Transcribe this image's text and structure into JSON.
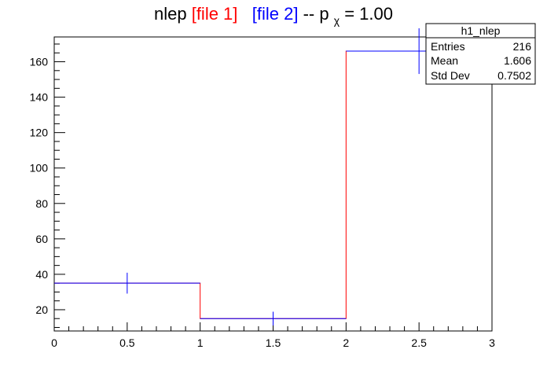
{
  "chart_data": {
    "type": "histogram-overlay",
    "title": {
      "prefix": "nlep ",
      "file1": "[file 1]",
      "file2": "[file 2]",
      "suffix_before_p": " -- p",
      "chi": "χ",
      "equals": " = 1.00"
    },
    "xlim": [
      0,
      3
    ],
    "ylim": [
      8,
      174
    ],
    "x_ticks": [
      {
        "value": 0,
        "label": "0"
      },
      {
        "value": 0.5,
        "label": "0.5"
      },
      {
        "value": 1,
        "label": "1"
      },
      {
        "value": 1.5,
        "label": "1.5"
      },
      {
        "value": 2,
        "label": "2"
      },
      {
        "value": 2.5,
        "label": "2.5"
      },
      {
        "value": 3,
        "label": "3"
      }
    ],
    "y_ticks": [
      {
        "value": 20,
        "label": "20"
      },
      {
        "value": 40,
        "label": "40"
      },
      {
        "value": 60,
        "label": "60"
      },
      {
        "value": 80,
        "label": "80"
      },
      {
        "value": 100,
        "label": "100"
      },
      {
        "value": 120,
        "label": "120"
      },
      {
        "value": 140,
        "label": "140"
      },
      {
        "value": 160,
        "label": "160"
      }
    ],
    "series": [
      {
        "name": "file 1",
        "color": "#ff0000",
        "style": "step",
        "bins": [
          {
            "x_low": 0,
            "x_high": 1,
            "value": 35
          },
          {
            "x_low": 1,
            "x_high": 2,
            "value": 15
          },
          {
            "x_low": 2,
            "x_high": 3,
            "value": 166
          }
        ]
      },
      {
        "name": "file 2",
        "color": "#0000ff",
        "style": "errorbar",
        "bins": [
          {
            "x_low": 0,
            "x_high": 1,
            "x_center": 0.5,
            "value": 35,
            "error": 5.9
          },
          {
            "x_low": 1,
            "x_high": 2,
            "x_center": 1.5,
            "value": 15,
            "error": 3.9
          },
          {
            "x_low": 2,
            "x_high": 3,
            "x_center": 2.5,
            "value": 166,
            "error": 12.9
          }
        ]
      }
    ],
    "grid": false
  },
  "stats_box": {
    "title": "h1_nlep",
    "rows": [
      {
        "label": "Entries",
        "value": "216"
      },
      {
        "label": "Mean",
        "value": "1.606"
      },
      {
        "label": "Std Dev",
        "value": "0.7502"
      }
    ]
  },
  "colors": {
    "file1": "#ff0000",
    "file2": "#0000ff",
    "axis": "#000000"
  }
}
